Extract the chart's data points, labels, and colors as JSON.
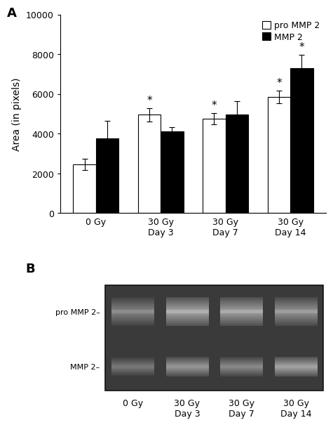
{
  "panel_A": {
    "categories": [
      "0 Gy",
      "30 Gy\nDay 3",
      "30 Gy\nDay 7",
      "30 Gy\nDay 14"
    ],
    "pro_mmp2_values": [
      2450,
      4950,
      4750,
      5850
    ],
    "pro_mmp2_errors": [
      280,
      330,
      280,
      320
    ],
    "mmp2_values": [
      3750,
      4100,
      4950,
      7300
    ],
    "mmp2_errors": [
      900,
      220,
      680,
      680
    ],
    "ylabel": "Area (in pixels)",
    "ylim": [
      0,
      10000
    ],
    "yticks": [
      0,
      2000,
      4000,
      6000,
      8000,
      10000
    ],
    "legend_labels": [
      "pro MMP 2",
      "MMP 2"
    ],
    "star_pro_indices": [
      1,
      2,
      3
    ],
    "star_mmp2_indices": [
      3
    ],
    "bar_width": 0.35,
    "panel_label": "A"
  },
  "panel_B": {
    "panel_label": "B",
    "categories": [
      "0 Gy",
      "30 Gy\nDay 3",
      "30 Gy\nDay 7",
      "30 Gy\nDay 14"
    ],
    "pro_mmp2_label": "pro MMP 2–",
    "mmp2_label": "MMP 2–",
    "gel_bg": "#3a3a3a",
    "pro_band_brightness": [
      0.52,
      0.65,
      0.63,
      0.58
    ],
    "mmp2_band_brightness": [
      0.48,
      0.6,
      0.55,
      0.65
    ]
  },
  "figure_bg": "#ffffff",
  "bar_color_white": "#ffffff",
  "bar_color_black": "#000000",
  "bar_edgecolor": "#000000",
  "errorbar_color": "#000000",
  "font_size_label": 10,
  "font_size_tick": 9,
  "font_size_legend": 9,
  "font_size_panel": 13,
  "font_size_gel_label": 8,
  "font_size_star": 11
}
